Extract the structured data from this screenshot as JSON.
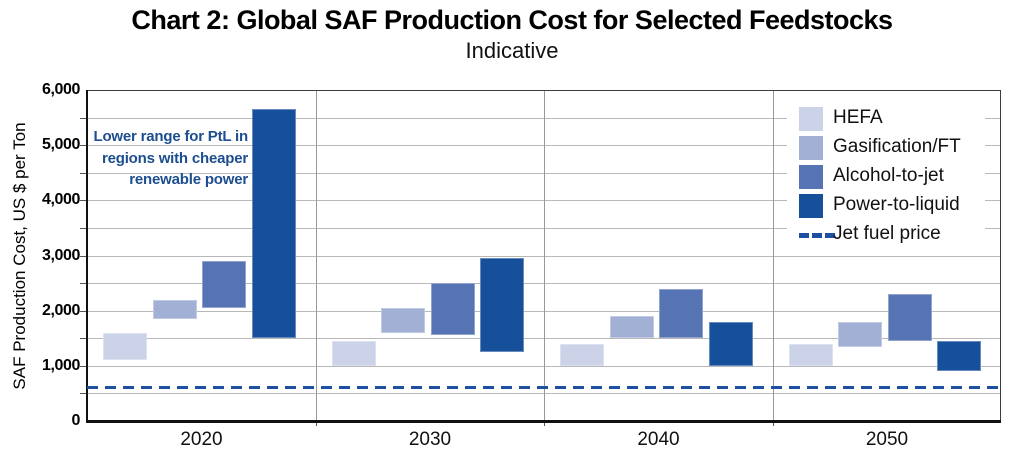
{
  "page": {
    "title": "Chart 2: Global SAF Production Cost for Selected Feedstocks",
    "subtitle": "Indicative"
  },
  "chart_data": {
    "type": "bar",
    "subtype": "floating-range-bars",
    "title": "Chart 2: Global SAF Production Cost for Selected Feedstocks",
    "subtitle": "Indicative",
    "xlabel": "",
    "ylabel": "SAF Production Cost, US $ per Ton",
    "ylim": [
      0,
      6000
    ],
    "ytick_step": 1000,
    "grid_step": 500,
    "grid": true,
    "yticklabels": [
      "0",
      "1,000",
      "2,000",
      "3,000",
      "4,000",
      "5,000",
      "6,000"
    ],
    "legend_position": "top-right",
    "categories": [
      "2020",
      "2030",
      "2040",
      "2050"
    ],
    "series": [
      {
        "name": "HEFA",
        "color": "#ccd3e9",
        "ranges": [
          [
            1100,
            1600
          ],
          [
            1000,
            1450
          ],
          [
            1000,
            1400
          ],
          [
            1000,
            1400
          ]
        ]
      },
      {
        "name": "Gasification/FT",
        "color": "#a3b0d6",
        "ranges": [
          [
            1850,
            2200
          ],
          [
            1600,
            2050
          ],
          [
            1500,
            1900
          ],
          [
            1350,
            1800
          ]
        ]
      },
      {
        "name": "Alcohol-to-jet",
        "color": "#5674b4",
        "ranges": [
          [
            2050,
            2900
          ],
          [
            1550,
            2500
          ],
          [
            1500,
            2400
          ],
          [
            1450,
            2300
          ]
        ]
      },
      {
        "name": "Power-to-liquid",
        "color": "#164f9a",
        "ranges": [
          [
            1500,
            5650
          ],
          [
            1250,
            2950
          ],
          [
            1000,
            1800
          ],
          [
            900,
            1450
          ]
        ]
      }
    ],
    "reference_line": {
      "label": "Jet fuel price",
      "value": 620,
      "color": "#1d50a0",
      "style": "dashed"
    },
    "annotation": {
      "lines": [
        "Lower range for PtL in",
        "regions with cheaper",
        "renewable power"
      ],
      "color": "#1d4e8f"
    }
  }
}
